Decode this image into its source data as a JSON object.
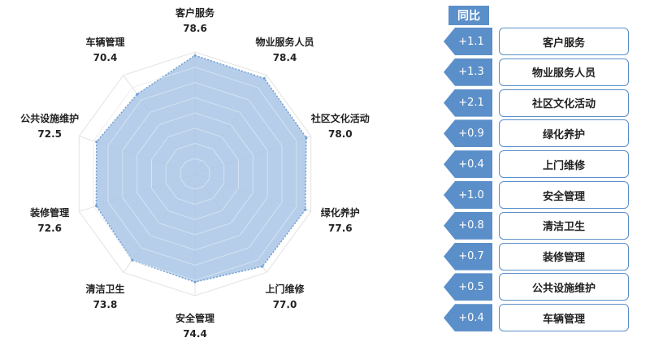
{
  "chart_data": {
    "type": "radar",
    "categories": [
      "客户服务",
      "物业服务人员",
      "社区文化活动",
      "绿化养护",
      "上门维修",
      "安全管理",
      "清洁卫生",
      "装修管理",
      "公共设施维护",
      "车辆管理"
    ],
    "values": [
      78.6,
      78.4,
      78.0,
      77.6,
      77.0,
      74.4,
      73.8,
      72.6,
      72.5,
      70.4
    ],
    "grid_levels": 8,
    "fill_color": "#a9c6e6",
    "stroke_color": "#6f9fd2",
    "grid_color": "#e3e3e3"
  },
  "yoy": {
    "header": "同比",
    "accent_color": "#5b8fc9",
    "items": [
      {
        "change": "+1.1",
        "label": "客户服务"
      },
      {
        "change": "+1.3",
        "label": "物业服务人员"
      },
      {
        "change": "+2.1",
        "label": "社区文化活动"
      },
      {
        "change": "+0.9",
        "label": "绿化养护"
      },
      {
        "change": "+0.4",
        "label": "上门维修"
      },
      {
        "change": "+1.0",
        "label": "安全管理"
      },
      {
        "change": "+0.8",
        "label": "清洁卫生"
      },
      {
        "change": "+0.7",
        "label": "装修管理"
      },
      {
        "change": "+0.5",
        "label": "公共设施维护"
      },
      {
        "change": "+0.4",
        "label": "车辆管理"
      }
    ]
  }
}
